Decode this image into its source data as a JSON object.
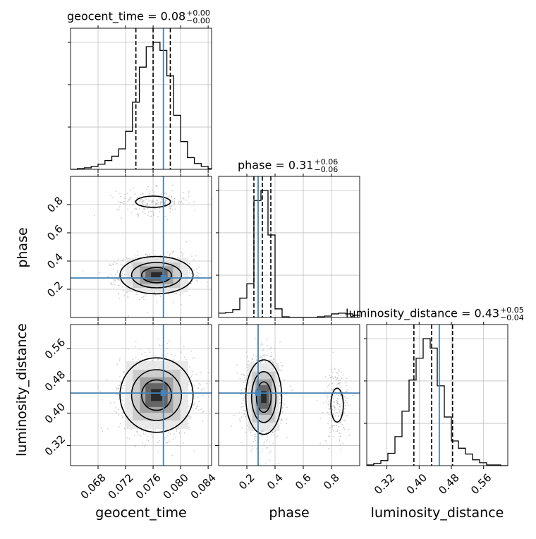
{
  "chart_data": {
    "type": "corner",
    "parameters": [
      "geocent_time",
      "phase",
      "luminosity_distance"
    ],
    "truth": {
      "geocent_time": 0.0775,
      "phase": 0.28,
      "luminosity_distance": 0.45
    },
    "axes": {
      "geocent_time": {
        "range": [
          0.064,
          0.0845
        ],
        "ticks": [
          "0.068",
          "0.072",
          "0.076",
          "0.080",
          "0.084"
        ],
        "tick_values": [
          0.068,
          0.072,
          0.076,
          0.08,
          0.084
        ]
      },
      "phase": {
        "range": [
          0.0,
          1.0
        ],
        "ticks": [
          "0.2",
          "0.4",
          "0.6",
          "0.8"
        ],
        "tick_values": [
          0.2,
          0.4,
          0.6,
          0.8
        ]
      },
      "luminosity_distance": {
        "range": [
          0.27,
          0.62
        ],
        "ticks": [
          "0.32",
          "0.40",
          "0.48",
          "0.56"
        ],
        "tick_values": [
          0.32,
          0.4,
          0.48,
          0.56
        ]
      }
    },
    "marginals": [
      {
        "param": "geocent_time",
        "title": "geocent_time = 0.08",
        "upper": "+0.00",
        "lower": "−0.00",
        "quantiles": [
          0.0735,
          0.076,
          0.0785
        ],
        "bin_edges": [
          0.064,
          0.065,
          0.066,
          0.067,
          0.068,
          0.069,
          0.07,
          0.071,
          0.072,
          0.073,
          0.074,
          0.075,
          0.076,
          0.077,
          0.078,
          0.079,
          0.08,
          0.081,
          0.082,
          0.083,
          0.084,
          0.0845
        ],
        "counts": [
          0,
          1,
          2,
          4,
          7,
          12,
          18,
          28,
          52,
          92,
          140,
          168,
          174,
          163,
          128,
          74,
          38,
          16,
          8,
          4,
          1
        ]
      },
      {
        "param": "phase",
        "title": "phase = 0.31",
        "upper": "+0.06",
        "lower": "−0.06",
        "quantiles": [
          0.25,
          0.31,
          0.37
        ],
        "bin_edges": [
          0.0,
          0.05,
          0.1,
          0.15,
          0.2,
          0.25,
          0.3,
          0.35,
          0.4,
          0.45,
          0.5,
          0.55,
          0.6,
          0.65,
          0.7,
          0.75,
          0.8,
          0.85,
          0.9,
          0.95,
          1.0
        ],
        "counts": [
          6,
          7,
          11,
          27,
          47,
          163,
          177,
          115,
          12,
          1,
          0,
          0,
          0,
          0,
          1,
          2,
          5,
          6,
          5,
          3
        ]
      },
      {
        "param": "luminosity_distance",
        "title": "luminosity_distance = 0.43",
        "upper": "+0.05",
        "lower": "−0.04",
        "quantiles": [
          0.387,
          0.431,
          0.483
        ],
        "bin_edges": [
          0.27,
          0.2875,
          0.305,
          0.3225,
          0.34,
          0.3575,
          0.375,
          0.3925,
          0.41,
          0.4275,
          0.445,
          0.4625,
          0.48,
          0.4975,
          0.515,
          0.5325,
          0.55,
          0.5675,
          0.585,
          0.6025,
          0.62
        ],
        "counts": [
          1,
          3,
          7,
          17,
          40,
          75,
          118,
          148,
          175,
          162,
          110,
          67,
          34,
          24,
          16,
          8,
          4,
          1,
          1,
          0
        ]
      }
    ],
    "joint_2d": [
      {
        "x": "geocent_time",
        "y": "phase",
        "modes": [
          {
            "x": 0.0765,
            "y": 0.3,
            "weight": 0.85
          },
          {
            "x": 0.076,
            "y": 0.82,
            "weight": 0.15
          }
        ]
      },
      {
        "x": "geocent_time",
        "y": "luminosity_distance",
        "modes": [
          {
            "x": 0.0765,
            "y": 0.445,
            "weight": 1.0
          }
        ]
      },
      {
        "x": "phase",
        "y": "luminosity_distance",
        "modes": [
          {
            "x": 0.32,
            "y": 0.44,
            "weight": 0.85
          },
          {
            "x": 0.84,
            "y": 0.42,
            "weight": 0.15
          }
        ]
      }
    ],
    "grid": true,
    "colors": {
      "truth": "#4682b4",
      "hist": "#000000",
      "grid": "#c0c0c0",
      "points": "#a8a8a8"
    }
  }
}
